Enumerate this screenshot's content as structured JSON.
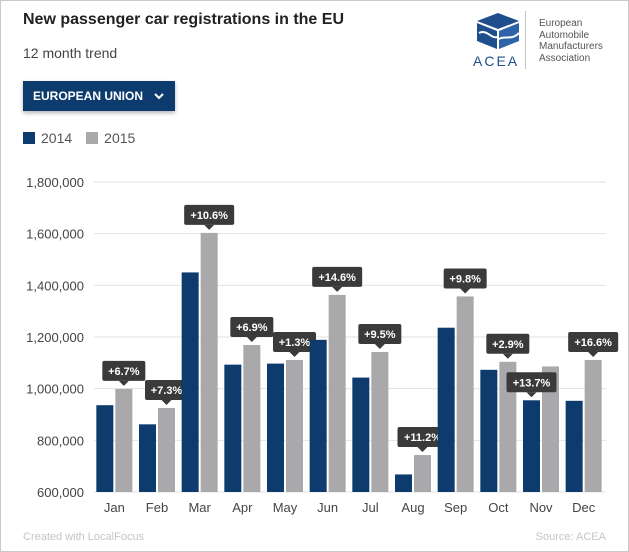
{
  "header": {
    "title": "New passenger car registrations in the EU",
    "subtitle": "12 month trend"
  },
  "logo": {
    "word": "ACEA",
    "line1": "European",
    "line2": "Automobile",
    "line3": "Manufacturers",
    "line4": "Association"
  },
  "filter": {
    "selected": "EUROPEAN UNION"
  },
  "footer": {
    "credit": "Created with LocalFocus",
    "source": "Source: ACEA"
  },
  "colors": {
    "series2014": "#0e3b6e",
    "series2015": "#a9a9ab",
    "label_bg": "#3a3a3a",
    "grid": "#e2e2e2"
  },
  "chart_data": {
    "type": "bar",
    "title": "New passenger car registrations in the EU",
    "subtitle": "12 month trend",
    "xlabel": "",
    "ylabel": "",
    "ylim": [
      600000,
      1800000
    ],
    "yticks": [
      600000,
      800000,
      1000000,
      1200000,
      1400000,
      1600000,
      1800000
    ],
    "ytick_labels": [
      "600,000",
      "800,000",
      "1,000,000",
      "1,200,000",
      "1,400,000",
      "1,600,000",
      "1,800,000"
    ],
    "grid": true,
    "legend_position": "top-left",
    "categories": [
      "Jan",
      "Feb",
      "Mar",
      "Apr",
      "May",
      "Jun",
      "Jul",
      "Aug",
      "Sep",
      "Oct",
      "Nov",
      "Dec"
    ],
    "series": [
      {
        "name": "2014",
        "values": [
          936000,
          862000,
          1450000,
          1093000,
          1097000,
          1189000,
          1043000,
          668000,
          1236000,
          1073000,
          955000,
          953000
        ]
      },
      {
        "name": "2015",
        "values": [
          999000,
          925000,
          1603000,
          1169000,
          1111000,
          1363000,
          1142000,
          743000,
          1357000,
          1104000,
          1086000,
          1111000
        ]
      }
    ],
    "change_labels": [
      "+6.7%",
      "+7.3%",
      "+10.6%",
      "+6.9%",
      "+1.3%",
      "+14.6%",
      "+9.5%",
      "+11.2%",
      "+9.8%",
      "+2.9%",
      "+13.7%",
      "+16.6%"
    ],
    "change_label_series": [
      1,
      1,
      1,
      1,
      1,
      1,
      1,
      1,
      1,
      1,
      0,
      1
    ]
  }
}
